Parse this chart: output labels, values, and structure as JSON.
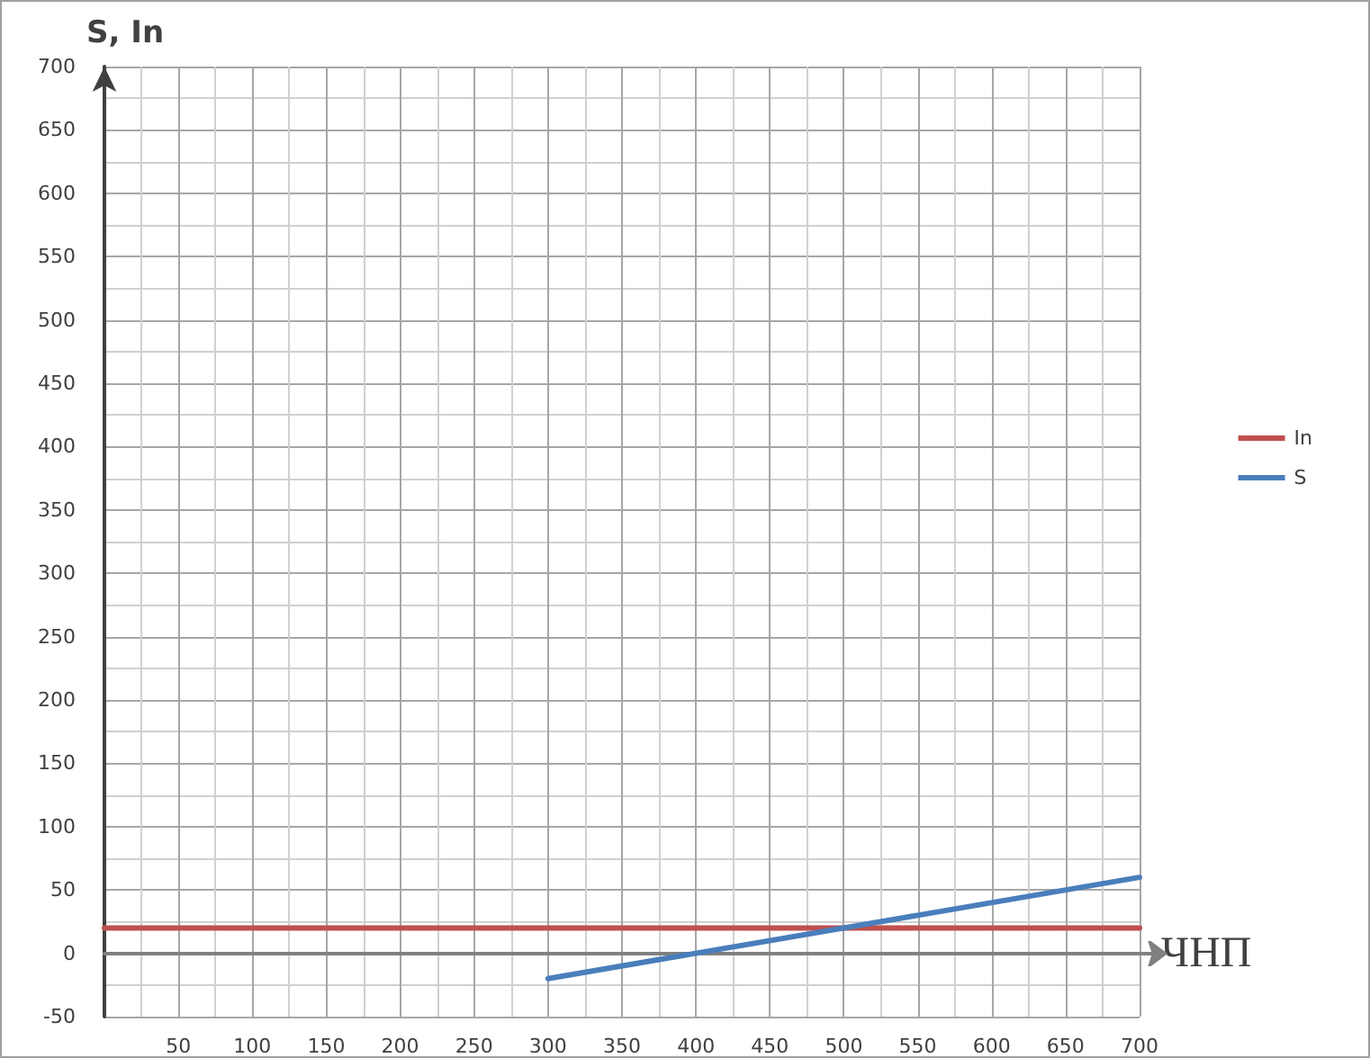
{
  "chart_data": {
    "type": "line",
    "xlabel": "ЧНП",
    "ylabel": "S, In",
    "series": [
      {
        "name": "In",
        "color": "#c0504d",
        "x": [
          0,
          700
        ],
        "values": [
          20,
          20
        ]
      },
      {
        "name": "S",
        "color": "#4a7ebb",
        "x": [
          300,
          700
        ],
        "values": [
          -20,
          60
        ]
      }
    ],
    "xlim": [
      0,
      700
    ],
    "xticks": [
      {
        "value": 0,
        "label": null
      },
      50,
      100,
      150,
      200,
      250,
      300,
      350,
      400,
      450,
      500,
      550,
      600,
      650,
      700
    ],
    "ylim": [
      -50,
      700
    ],
    "yticks": [
      -50,
      0,
      50,
      100,
      150,
      200,
      250,
      300,
      350,
      400,
      450,
      500,
      550,
      600,
      650,
      700
    ],
    "grid": true,
    "legend": "right",
    "marker": "none",
    "line_style": "solid"
  }
}
